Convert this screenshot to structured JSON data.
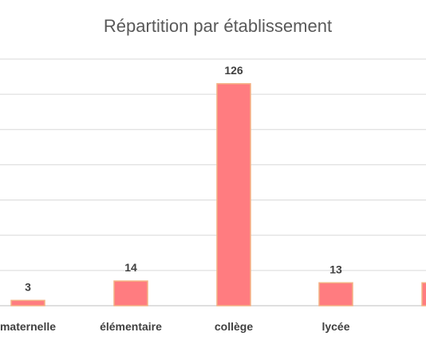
{
  "chart_data": {
    "type": "bar",
    "title": "Répartition par établissement",
    "categories": [
      "maternelle",
      "élémentaire",
      "collège",
      "lycée",
      ""
    ],
    "values": [
      3,
      14,
      126,
      13,
      13
    ],
    "data_labels": [
      "3",
      "14",
      "126",
      "13",
      ""
    ],
    "ylim": [
      0,
      140
    ],
    "grid": true,
    "legend": "none",
    "colors": {
      "bar_fill": "#ff7c80",
      "bar_stroke": "#f4b183"
    }
  }
}
